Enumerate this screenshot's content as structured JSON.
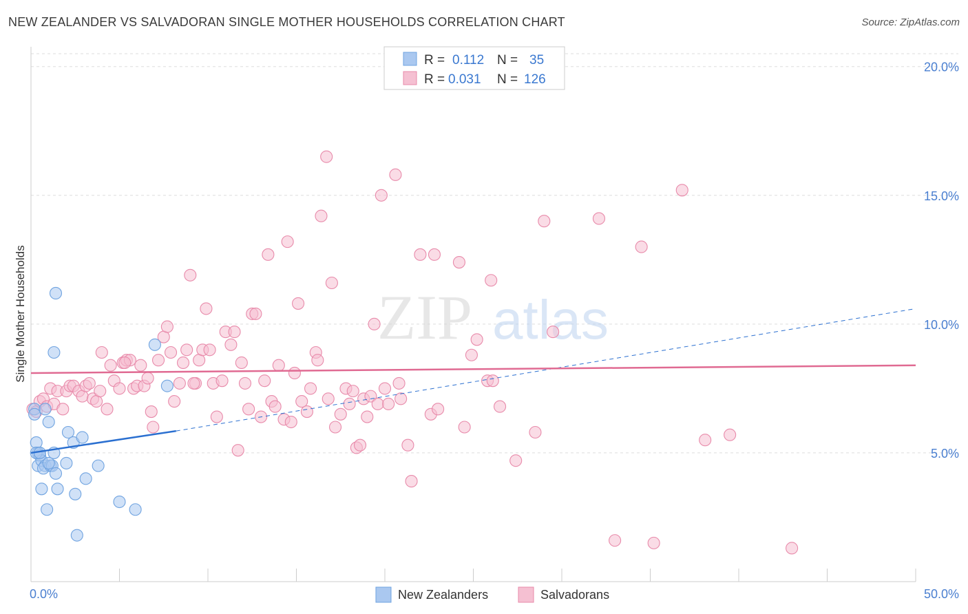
{
  "title": "NEW ZEALANDER VS SALVADORAN SINGLE MOTHER HOUSEHOLDS CORRELATION CHART",
  "source": "Source: ZipAtlas.com",
  "watermark": {
    "zip": "ZIP",
    "atlas": "atlas"
  },
  "legend": {
    "r_label": "R =",
    "n_label": "N =",
    "series1": {
      "r": "0.112",
      "n": "35"
    },
    "series2": {
      "r": "0.031",
      "n": "126"
    }
  },
  "chart_data": {
    "type": "scatter",
    "title": "NEW ZEALANDER VS SALVADORAN SINGLE MOTHER HOUSEHOLDS CORRELATION CHART",
    "xlabel": "",
    "ylabel": "Single Mother Households",
    "xlim": [
      0,
      50
    ],
    "ylim": [
      0,
      20.5
    ],
    "x_tick_labels": [
      "0.0%",
      "50.0%"
    ],
    "y_ticks": [
      5,
      10,
      15,
      20
    ],
    "y_tick_labels": [
      "5.0%",
      "10.0%",
      "15.0%",
      "20.0%"
    ],
    "colors": {
      "blue": "#6fa3e0",
      "blue_fill": "#aac8f0",
      "pink": "#e88aaa",
      "pink_fill": "#f5c0d2",
      "blue_line": "#2a6fd0",
      "pink_line": "#e06a92"
    },
    "series": [
      {
        "name": "New Zealanders",
        "r": 0.112,
        "n": 35,
        "trend": {
          "x0": 0,
          "y0": 5.0,
          "x1": 8.2,
          "y1": 5.85,
          "dash_to_x": 50,
          "dash_to_y": 10.6
        },
        "points": [
          [
            0.2,
            6.7
          ],
          [
            0.3,
            5.4
          ],
          [
            0.4,
            5.0
          ],
          [
            0.5,
            4.9
          ],
          [
            0.4,
            4.5
          ],
          [
            0.6,
            4.7
          ],
          [
            0.6,
            3.6
          ],
          [
            0.8,
            4.5
          ],
          [
            0.7,
            4.4
          ],
          [
            0.9,
            2.8
          ],
          [
            1.0,
            6.2
          ],
          [
            1.1,
            4.5
          ],
          [
            1.2,
            4.5
          ],
          [
            1.3,
            5.0
          ],
          [
            1.3,
            8.9
          ],
          [
            1.4,
            4.2
          ],
          [
            1.5,
            3.6
          ],
          [
            1.4,
            11.2
          ],
          [
            2.0,
            4.6
          ],
          [
            2.1,
            5.8
          ],
          [
            2.4,
            5.4
          ],
          [
            2.5,
            3.4
          ],
          [
            2.6,
            1.8
          ],
          [
            2.9,
            5.6
          ],
          [
            3.1,
            4.0
          ],
          [
            3.8,
            4.5
          ],
          [
            5.0,
            3.1
          ],
          [
            5.9,
            2.8
          ],
          [
            7.0,
            9.2
          ],
          [
            7.7,
            7.6
          ],
          [
            0.2,
            6.5
          ],
          [
            0.3,
            5.0
          ],
          [
            0.8,
            6.7
          ],
          [
            1.0,
            4.6
          ],
          [
            0.5,
            5.0
          ]
        ]
      },
      {
        "name": "Salvadorans",
        "r": 0.031,
        "n": 126,
        "trend": {
          "x0": 0,
          "y0": 8.1,
          "x1": 50,
          "y1": 8.4
        },
        "points": [
          [
            0.1,
            6.7
          ],
          [
            0.3,
            6.6
          ],
          [
            0.5,
            7.0
          ],
          [
            0.7,
            7.1
          ],
          [
            0.9,
            6.8
          ],
          [
            1.1,
            7.5
          ],
          [
            1.3,
            6.9
          ],
          [
            1.5,
            7.4
          ],
          [
            1.8,
            6.7
          ],
          [
            2.0,
            7.4
          ],
          [
            2.2,
            7.6
          ],
          [
            2.4,
            7.6
          ],
          [
            2.7,
            7.4
          ],
          [
            2.9,
            7.2
          ],
          [
            3.1,
            7.6
          ],
          [
            3.3,
            7.7
          ],
          [
            3.5,
            7.1
          ],
          [
            3.7,
            7.0
          ],
          [
            3.9,
            7.4
          ],
          [
            4.0,
            8.9
          ],
          [
            4.3,
            6.7
          ],
          [
            4.5,
            8.4
          ],
          [
            4.7,
            7.8
          ],
          [
            5.0,
            7.5
          ],
          [
            5.2,
            8.5
          ],
          [
            5.4,
            8.6
          ],
          [
            5.6,
            8.6
          ],
          [
            5.8,
            7.5
          ],
          [
            6.0,
            7.6
          ],
          [
            6.2,
            8.4
          ],
          [
            6.4,
            7.6
          ],
          [
            6.6,
            7.9
          ],
          [
            6.8,
            6.6
          ],
          [
            6.9,
            6.0
          ],
          [
            7.2,
            8.6
          ],
          [
            7.5,
            9.5
          ],
          [
            7.7,
            9.9
          ],
          [
            7.9,
            8.9
          ],
          [
            8.1,
            7.0
          ],
          [
            8.4,
            7.7
          ],
          [
            8.6,
            8.5
          ],
          [
            8.8,
            9.0
          ],
          [
            9.0,
            11.9
          ],
          [
            9.3,
            7.7
          ],
          [
            9.5,
            8.6
          ],
          [
            9.7,
            9.0
          ],
          [
            9.9,
            10.6
          ],
          [
            10.1,
            9.0
          ],
          [
            10.3,
            7.7
          ],
          [
            10.5,
            6.4
          ],
          [
            10.8,
            7.8
          ],
          [
            11.0,
            9.7
          ],
          [
            11.3,
            9.2
          ],
          [
            11.5,
            9.7
          ],
          [
            11.7,
            5.1
          ],
          [
            11.9,
            8.5
          ],
          [
            12.1,
            7.7
          ],
          [
            12.3,
            6.7
          ],
          [
            12.5,
            10.4
          ],
          [
            12.7,
            10.4
          ],
          [
            13.0,
            6.4
          ],
          [
            13.2,
            7.8
          ],
          [
            13.4,
            12.7
          ],
          [
            13.6,
            7.0
          ],
          [
            13.8,
            6.8
          ],
          [
            14.0,
            8.4
          ],
          [
            14.3,
            6.3
          ],
          [
            14.5,
            13.2
          ],
          [
            14.7,
            6.2
          ],
          [
            14.9,
            8.1
          ],
          [
            15.1,
            10.8
          ],
          [
            15.3,
            7.0
          ],
          [
            15.6,
            6.6
          ],
          [
            15.8,
            7.5
          ],
          [
            16.1,
            8.9
          ],
          [
            16.2,
            8.6
          ],
          [
            16.4,
            14.2
          ],
          [
            16.7,
            16.5
          ],
          [
            16.8,
            7.1
          ],
          [
            17.0,
            11.6
          ],
          [
            17.2,
            6.0
          ],
          [
            17.5,
            6.5
          ],
          [
            17.8,
            7.5
          ],
          [
            18.0,
            6.9
          ],
          [
            18.2,
            7.4
          ],
          [
            18.4,
            5.2
          ],
          [
            18.6,
            5.3
          ],
          [
            18.8,
            7.1
          ],
          [
            19.0,
            6.4
          ],
          [
            19.2,
            7.2
          ],
          [
            19.4,
            10.0
          ],
          [
            19.6,
            6.9
          ],
          [
            19.8,
            15.0
          ],
          [
            20.0,
            7.5
          ],
          [
            20.2,
            6.9
          ],
          [
            20.6,
            15.8
          ],
          [
            20.8,
            7.7
          ],
          [
            20.9,
            7.1
          ],
          [
            21.3,
            5.3
          ],
          [
            21.5,
            3.9
          ],
          [
            22.0,
            12.7
          ],
          [
            22.6,
            6.5
          ],
          [
            22.8,
            12.7
          ],
          [
            23.0,
            6.7
          ],
          [
            24.2,
            12.4
          ],
          [
            24.5,
            6.0
          ],
          [
            24.9,
            8.8
          ],
          [
            25.2,
            9.4
          ],
          [
            25.8,
            7.8
          ],
          [
            26.0,
            11.7
          ],
          [
            26.1,
            7.8
          ],
          [
            26.5,
            6.8
          ],
          [
            27.4,
            4.7
          ],
          [
            28.5,
            5.8
          ],
          [
            29.0,
            14.0
          ],
          [
            29.5,
            9.7
          ],
          [
            32.1,
            14.1
          ],
          [
            33.0,
            1.6
          ],
          [
            34.5,
            13.0
          ],
          [
            35.2,
            1.5
          ],
          [
            36.8,
            15.2
          ],
          [
            38.1,
            5.5
          ],
          [
            39.5,
            5.7
          ],
          [
            43.0,
            1.3
          ],
          [
            5.3,
            8.5
          ],
          [
            9.2,
            7.7
          ]
        ]
      }
    ]
  },
  "bottom_legend": {
    "series1": "New Zealanders",
    "series2": "Salvadorans"
  }
}
